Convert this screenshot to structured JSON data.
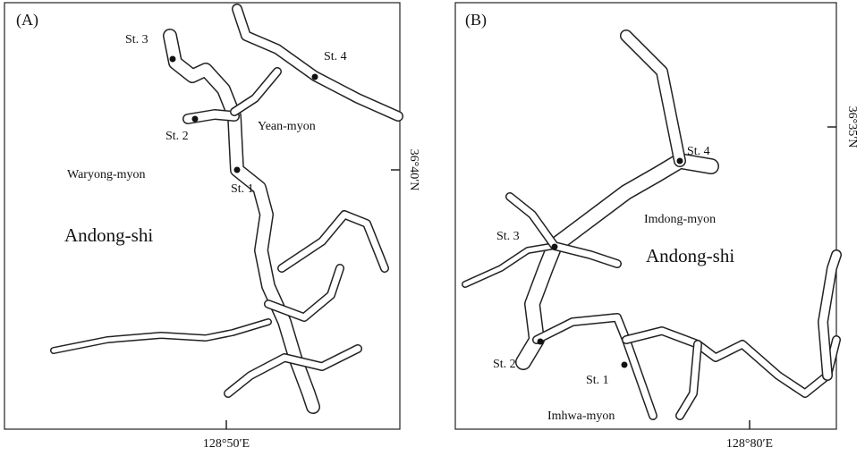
{
  "panels": [
    {
      "label": "(A)",
      "stations": [
        "St. 1",
        "St. 2",
        "St. 3",
        "St. 4"
      ],
      "places": [
        "Yean-myon",
        "Waryong-myon",
        "Andong-shi"
      ],
      "latitude": "36°40′N",
      "longitude": "128°50′E"
    },
    {
      "label": "(B)",
      "stations": [
        "St. 1",
        "St. 2",
        "St. 3",
        "St. 4"
      ],
      "places": [
        "Imdong-myon",
        "Andong-shi",
        "Imhwa-myon"
      ],
      "latitude": "36°35′N",
      "longitude": "128°80′E"
    }
  ]
}
